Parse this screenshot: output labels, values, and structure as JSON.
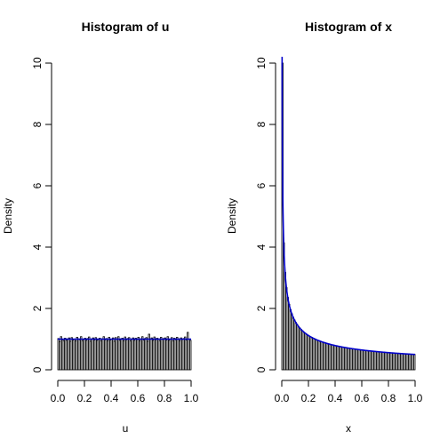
{
  "chart_data": [
    {
      "type": "histogram",
      "title": "Histogram of u",
      "xlabel": "u",
      "ylabel": "Density",
      "xlim": [
        0,
        1
      ],
      "ylim": [
        0,
        10
      ],
      "xticks": [
        "0.0",
        "0.2",
        "0.4",
        "0.6",
        "0.8",
        "1.0"
      ],
      "yticks": [
        "0",
        "2",
        "4",
        "6",
        "8",
        "10"
      ],
      "bin_width": 0.01,
      "density_values": [
        1.02,
        0.92,
        1.08,
        0.98,
        0.95,
        1.03,
        0.96,
        0.99,
        1.04,
        0.93,
        1.05,
        0.97,
        1.0,
        0.94,
        1.06,
        1.01,
        0.98,
        1.08,
        0.95,
        0.99,
        1.03,
        0.96,
        1.02,
        1.07,
        0.93,
        1.0,
        1.04,
        0.97,
        1.05,
        0.96,
        0.99,
        1.03,
        0.94,
        1.01,
        1.08,
        0.98,
        1.02,
        0.95,
        1.06,
        0.97,
        1.0,
        1.04,
        0.93,
        1.05,
        0.99,
        1.08,
        0.96,
        1.01,
        1.03,
        0.95,
        1.07,
        0.98,
        1.02,
        1.05,
        0.94,
        1.0,
        1.04,
        0.96,
        1.03,
        0.99,
        1.06,
        0.95,
        1.01,
        1.08,
        0.97,
        1.02,
        1.05,
        0.93,
        1.16,
        1.0,
        1.04,
        0.96,
        1.07,
        0.98,
        1.03,
        1.01,
        0.95,
        1.06,
        0.99,
        1.02,
        1.04,
        0.97,
        1.08,
        0.96,
        1.0,
        1.05,
        0.94,
        1.03,
        0.98,
        1.06,
        1.01,
        0.95,
        1.04,
        0.99,
        1.02,
        1.07,
        0.97,
        1.22,
        1.0,
        0.96
      ],
      "density_line": {
        "color": "#0000cc",
        "value": 1.0
      }
    },
    {
      "type": "histogram",
      "title": "Histogram of x",
      "xlabel": "x",
      "ylabel": "Density",
      "xlim": [
        0,
        1
      ],
      "ylim": [
        0,
        10
      ],
      "xticks": [
        "0.0",
        "0.2",
        "0.4",
        "0.6",
        "0.8",
        "1.0"
      ],
      "yticks": [
        "0",
        "2",
        "4",
        "6",
        "8",
        "10"
      ],
      "bin_width": 0.01,
      "density_line": {
        "color": "#0000cc",
        "formula": "0.5/sqrt(x)"
      }
    }
  ]
}
